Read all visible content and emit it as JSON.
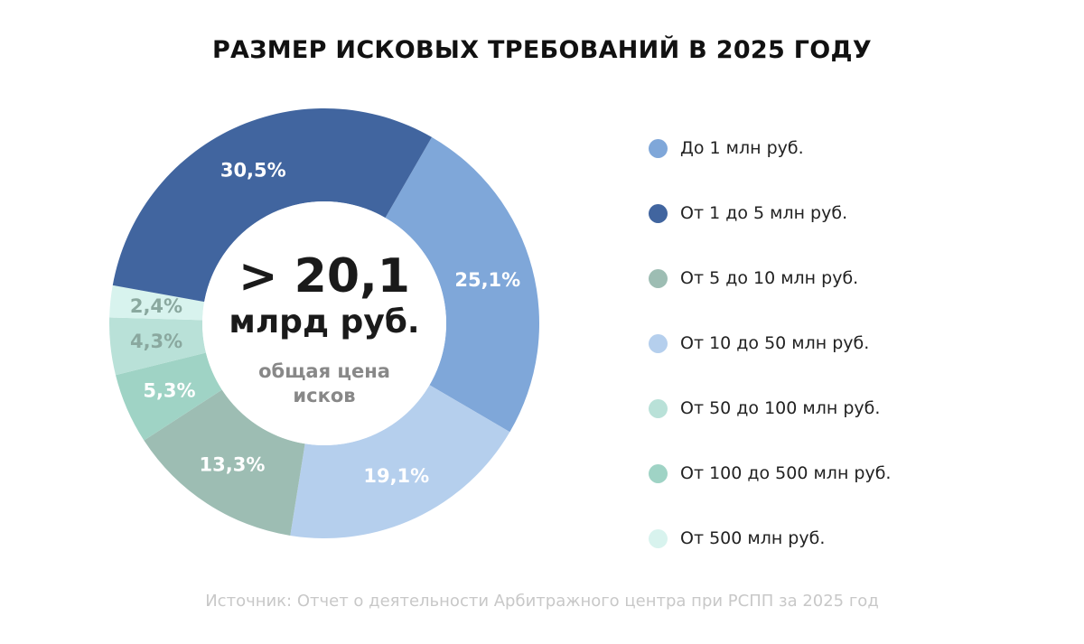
{
  "chart_data": {
    "type": "pie",
    "title": "РАЗМЕР ИСКОВЫХ ТРЕБОВАНИЙ В 2025 ГОДУ",
    "center": {
      "value": "> 20,1",
      "unit": "млрд руб.",
      "caption_line1": "общая цена",
      "caption_line2": "исков"
    },
    "legend_position": "right",
    "slices": [
      {
        "label": "До 1 млн руб.",
        "value": 25.1,
        "text": "25,1%",
        "color": "#7fa7d9",
        "label_color": "#ffffff"
      },
      {
        "label": "От 10 до 50 млн руб.",
        "value": 19.1,
        "text": "19,1%",
        "color": "#b5cfed",
        "label_color": "#ffffff"
      },
      {
        "label": "От 5 до 10 млн руб.",
        "value": 13.3,
        "text": "13,3%",
        "color": "#9dbdb3",
        "label_color": "#ffffff"
      },
      {
        "label": "От 100 до 500 млн руб.",
        "value": 5.3,
        "text": "5,3%",
        "color": "#9fd3c5",
        "label_color": "#ffffff"
      },
      {
        "label": "От 50 до 100 млн руб.",
        "value": 4.3,
        "text": "4,3%",
        "color": "#b9e1d8",
        "label_color": "#8aa89f"
      },
      {
        "label": "От 500 млн руб.",
        "value": 2.4,
        "text": "2,4%",
        "color": "#d8f3ee",
        "label_color": "#8aa89f"
      },
      {
        "label": "От 1 до 5 млн руб.",
        "value": 30.5,
        "text": "30,5%",
        "color": "#41659f",
        "label_color": "#ffffff"
      }
    ],
    "legend": [
      {
        "label": "До 1 млн руб.",
        "color": "#7fa7d9"
      },
      {
        "label": "От 1 до 5 млн руб.",
        "color": "#41659f"
      },
      {
        "label": "От 5 до 10 млн руб.",
        "color": "#9dbdb3"
      },
      {
        "label": "От 10 до 50 млн руб.",
        "color": "#b5cfed"
      },
      {
        "label": "От 50 до 100 млн руб.",
        "color": "#b9e1d8"
      },
      {
        "label": "От 100 до 500 млн руб.",
        "color": "#9fd3c5"
      },
      {
        "label": "От 500 млн руб.",
        "color": "#d8f3ee"
      }
    ]
  },
  "source": "Источник: Отчет о деятельности Арбитражного центра при РСПП за 2025 год"
}
